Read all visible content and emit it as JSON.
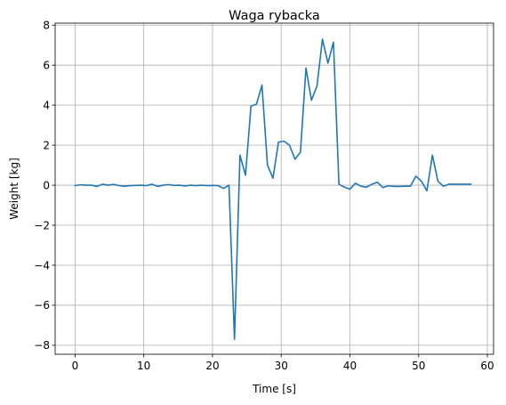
{
  "chart_data": {
    "type": "line",
    "title": "Waga rybacka",
    "xlabel": "Time [s]",
    "ylabel": "Weight [kg]",
    "xlim": [
      -2.9,
      60.9
    ],
    "ylim": [
      -8.45,
      8.1
    ],
    "xticks": [
      0,
      10,
      20,
      30,
      40,
      50,
      60
    ],
    "yticks": [
      -8,
      -6,
      -4,
      -2,
      0,
      2,
      4,
      6,
      8
    ],
    "xtick_labels": [
      "0",
      "10",
      "20",
      "30",
      "40",
      "50",
      "60"
    ],
    "ytick_labels": [
      "−8",
      "−6",
      "−4",
      "−2",
      "0",
      "2",
      "4",
      "6",
      "8"
    ],
    "grid": true,
    "series": [
      {
        "color": "#1f77b4",
        "x": [
          0,
          0.8,
          1.6,
          2.4,
          3.2,
          4.0,
          4.8,
          5.6,
          6.4,
          7.2,
          8.0,
          8.8,
          9.6,
          10.4,
          11.2,
          12.0,
          12.8,
          13.6,
          14.4,
          15.2,
          16.0,
          16.8,
          17.6,
          18.4,
          19.2,
          20.0,
          20.8,
          21.6,
          22.4,
          23.2,
          24.0,
          24.8,
          25.6,
          26.4,
          27.2,
          28.0,
          28.8,
          29.6,
          30.4,
          31.2,
          32.0,
          32.8,
          33.6,
          34.4,
          35.2,
          36.0,
          36.8,
          37.6,
          38.4,
          39.2,
          40.0,
          40.8,
          41.6,
          42.4,
          43.2,
          44.0,
          44.8,
          45.6,
          46.4,
          47.2,
          48.0,
          48.8,
          49.6,
          50.4,
          51.2,
          52.0,
          52.8,
          53.6,
          54.4,
          55.2,
          56.0,
          56.8,
          57.6
        ],
        "y": [
          -0.02,
          0.02,
          0.0,
          0.0,
          -0.06,
          0.05,
          0.0,
          0.04,
          -0.02,
          -0.05,
          -0.02,
          -0.01,
          0.0,
          -0.02,
          0.05,
          -0.06,
          0.0,
          0.03,
          -0.01,
          0.0,
          -0.04,
          0.0,
          -0.02,
          0.0,
          -0.02,
          -0.01,
          -0.02,
          -0.16,
          0.0,
          -7.7,
          1.5,
          0.5,
          3.95,
          4.05,
          5.0,
          1.0,
          0.35,
          2.15,
          2.2,
          2.0,
          1.3,
          1.65,
          5.85,
          4.25,
          4.95,
          7.3,
          6.1,
          7.15,
          0.05,
          -0.1,
          -0.2,
          0.1,
          -0.05,
          -0.1,
          0.05,
          0.15,
          -0.12,
          -0.03,
          -0.06,
          -0.06,
          -0.05,
          -0.05,
          0.45,
          0.2,
          -0.28,
          1.5,
          0.2,
          -0.05,
          0.05,
          0.05,
          0.05,
          0.05,
          0.05
        ]
      }
    ]
  }
}
